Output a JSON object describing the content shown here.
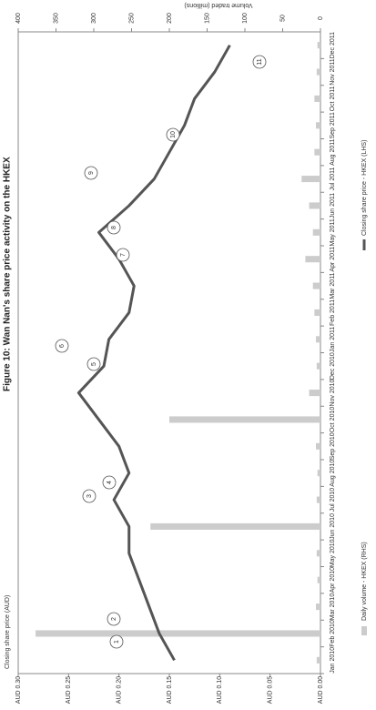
{
  "chart_data": {
    "type": "combo",
    "title": "Figure 10: Wan Nan's share price activity on the HKEX",
    "y_label": "Closing share price (AUD)",
    "y2_label": "Volume traded (millions)",
    "categories": [
      "Jan 2010",
      "Feb 2010",
      "Mar 2010",
      "Apr 2010",
      "May 2010",
      "Jun 2010",
      "Jul 2010",
      "Aug 2010",
      "Sep 2010",
      "Oct 2010",
      "Nov 2010",
      "Dec 2010",
      "Jan 2011",
      "Feb 2011",
      "Mar 2011",
      "Apr 2011",
      "May 2011",
      "Jun 2011",
      "Jul 2011",
      "Aug 2011",
      "Sep 2011",
      "Oct 2011",
      "Nov 2011",
      "Dec 2011"
    ],
    "series": [
      {
        "name": "Daily volume - HKEX (RHS)",
        "type": "bar",
        "axis": "y2",
        "color": "#cccccc",
        "values": [
          5,
          377,
          6,
          4,
          5,
          225,
          5,
          4,
          6,
          200,
          15,
          5,
          6,
          8,
          10,
          20,
          10,
          15,
          25,
          8,
          6,
          8,
          5,
          4
        ]
      },
      {
        "name": "Closing share price - HKEX (LHS)",
        "type": "line",
        "color": "#555555",
        "values": [
          0.145,
          0.16,
          0.17,
          0.18,
          0.19,
          0.19,
          0.205,
          0.19,
          0.2,
          0.22,
          0.24,
          0.215,
          0.21,
          0.19,
          0.185,
          0.2,
          0.22,
          0.19,
          0.165,
          0.15,
          0.135,
          0.125,
          0.105,
          0.09
        ]
      }
    ],
    "ylim": [
      0,
      0.3
    ],
    "yticks": [
      {
        "value": 0,
        "label": "AUD 0.00"
      },
      {
        "value": 0.05,
        "label": "AUD 0.05"
      },
      {
        "value": 0.1,
        "label": "AUD 0.10"
      },
      {
        "value": 0.15,
        "label": "AUD 0.15"
      },
      {
        "value": 0.2,
        "label": "AUD 0.20"
      },
      {
        "value": 0.25,
        "label": "AUD 0.25"
      },
      {
        "value": 0.3,
        "label": "AUD 0.30"
      }
    ],
    "y2lim": [
      0,
      400
    ],
    "y2ticks": [
      0,
      50,
      100,
      150,
      200,
      250,
      300,
      350,
      400
    ],
    "annotations": [
      "1",
      "2",
      "3",
      "4",
      "5",
      "6",
      "7",
      "8",
      "9",
      "10",
      "11"
    ]
  }
}
